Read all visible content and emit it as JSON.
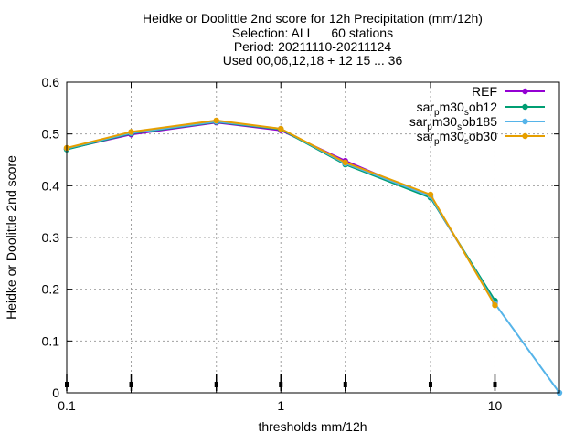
{
  "chart_data": {
    "type": "line",
    "title": [
      "Heidke or Doolittle 2nd score  for 12h Precipitation (mm/12h)",
      "Selection: ALL     60 stations",
      "Period: 20211110-20211124",
      "Used 00,06,12,18 + 12 15 ... 36"
    ],
    "xlabel": "thresholds mm/12h",
    "ylabel": "Heidke or Doolittle 2nd score",
    "x_scale": "log",
    "xlim": [
      0.1,
      20
    ],
    "ylim": [
      0,
      0.6
    ],
    "x_ticks": [
      {
        "value": 0.1,
        "label": "0.1"
      },
      {
        "value": 1,
        "label": "1"
      },
      {
        "value": 10,
        "label": "10"
      }
    ],
    "x_grid": [
      0.1,
      0.2,
      0.5,
      1,
      2,
      5,
      10,
      20
    ],
    "y_ticks": [
      {
        "value": 0,
        "label": "0"
      },
      {
        "value": 0.1,
        "label": "0.1"
      },
      {
        "value": 0.2,
        "label": "0.2"
      },
      {
        "value": 0.3,
        "label": "0.3"
      },
      {
        "value": 0.4,
        "label": "0.4"
      },
      {
        "value": 0.5,
        "label": "0.5"
      },
      {
        "value": 0.6,
        "label": "0.6"
      }
    ],
    "grid": true,
    "legend_position": "top-right",
    "error_markers_x": [
      0.1,
      0.2,
      0.5,
      1,
      2,
      5,
      10
    ],
    "series": [
      {
        "name": "REF",
        "color": "#9400d3",
        "x": [
          0.1,
          0.2,
          0.5,
          1,
          2,
          5,
          10
        ],
        "y": [
          0.471,
          0.499,
          0.522,
          0.507,
          0.448,
          0.378,
          0.175
        ]
      },
      {
        "name": "sar_pm30_sob12",
        "name_base": "sar",
        "name_sub1": "p",
        "name_mid": "m30",
        "name_sub2": "s",
        "name_end": "ob12",
        "color": "#009e73",
        "x": [
          0.1,
          0.2,
          0.5,
          1,
          2,
          5,
          10
        ],
        "y": [
          0.47,
          0.501,
          0.523,
          0.509,
          0.441,
          0.377,
          0.178
        ]
      },
      {
        "name": "sar_pm30_sob185",
        "name_base": "sar",
        "name_sub1": "p",
        "name_mid": "m30",
        "name_sub2": "s",
        "name_end": "ob185",
        "color": "#56b4e9",
        "x": [
          0.1,
          0.2,
          0.5,
          1,
          2,
          5,
          10,
          20
        ],
        "y": [
          0.472,
          0.502,
          0.524,
          0.51,
          0.443,
          0.38,
          0.172,
          0.0
        ]
      },
      {
        "name": "sar_pm30_sob30",
        "name_base": "sar",
        "name_sub1": "p",
        "name_mid": "m30",
        "name_sub2": "s",
        "name_end": "ob30",
        "color": "#e69f00",
        "x": [
          0.1,
          0.2,
          0.5,
          1,
          2,
          5,
          10
        ],
        "y": [
          0.473,
          0.504,
          0.526,
          0.51,
          0.445,
          0.383,
          0.169
        ]
      }
    ]
  }
}
